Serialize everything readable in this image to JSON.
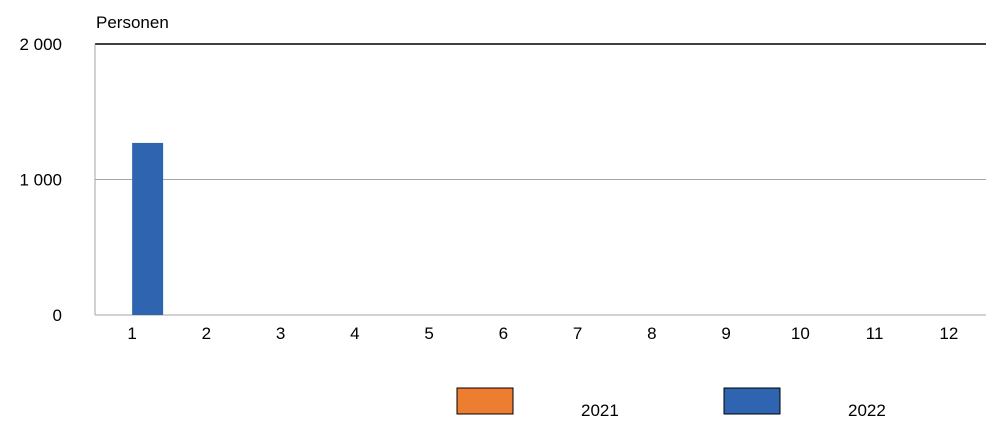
{
  "chart_data": {
    "type": "bar",
    "ylabel": "Personen",
    "categories": [
      "1",
      "2",
      "3",
      "4",
      "5",
      "6",
      "7",
      "8",
      "9",
      "10",
      "11",
      "12"
    ],
    "series": [
      {
        "name": "2021",
        "color": "#ED7D31",
        "values": [
          0,
          0,
          0,
          0,
          0,
          0,
          0,
          0,
          0,
          0,
          0,
          0
        ]
      },
      {
        "name": "2022",
        "color": "#2E64B0",
        "values": [
          1270,
          0,
          0,
          0,
          0,
          0,
          0,
          0,
          0,
          0,
          0,
          0
        ]
      }
    ],
    "ylim": [
      0,
      2000
    ],
    "yticks": [
      0,
      1000,
      2000
    ],
    "ytick_labels": [
      "0",
      "1 000",
      "2 000"
    ],
    "grid": true,
    "legend_position": "bottom"
  }
}
